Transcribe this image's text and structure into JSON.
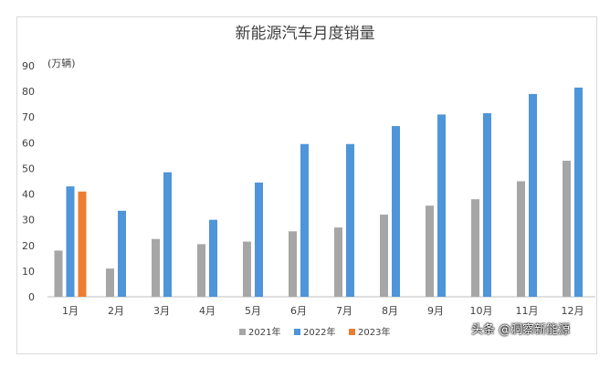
{
  "chart_data": {
    "type": "bar",
    "title": "新能源汽车月度销量",
    "ylabel": "(万辆)",
    "xlabel": "",
    "categories": [
      "1月",
      "2月",
      "3月",
      "4月",
      "5月",
      "6月",
      "7月",
      "8月",
      "9月",
      "10月",
      "11月",
      "12月"
    ],
    "series": [
      {
        "name": "2021年",
        "color": "#a6a6a6",
        "values": [
          18,
          11,
          22.5,
          20.5,
          21.5,
          25.5,
          27,
          32,
          35.5,
          38,
          45,
          53
        ]
      },
      {
        "name": "2022年",
        "color": "#4e95d9",
        "values": [
          43,
          33.5,
          48.5,
          30,
          44.5,
          59.5,
          59.5,
          66.5,
          71,
          71.5,
          79,
          81.5
        ]
      },
      {
        "name": "2023年",
        "color": "#ed7d31",
        "values": [
          41,
          null,
          null,
          null,
          null,
          null,
          null,
          null,
          null,
          null,
          null,
          null
        ]
      }
    ],
    "ylim": [
      0,
      90
    ],
    "yticks": [
      0,
      10,
      20,
      30,
      40,
      50,
      60,
      70,
      80,
      90
    ],
    "grid": false,
    "legend_position": "bottom"
  },
  "watermark": "头条 @洞察新能源"
}
